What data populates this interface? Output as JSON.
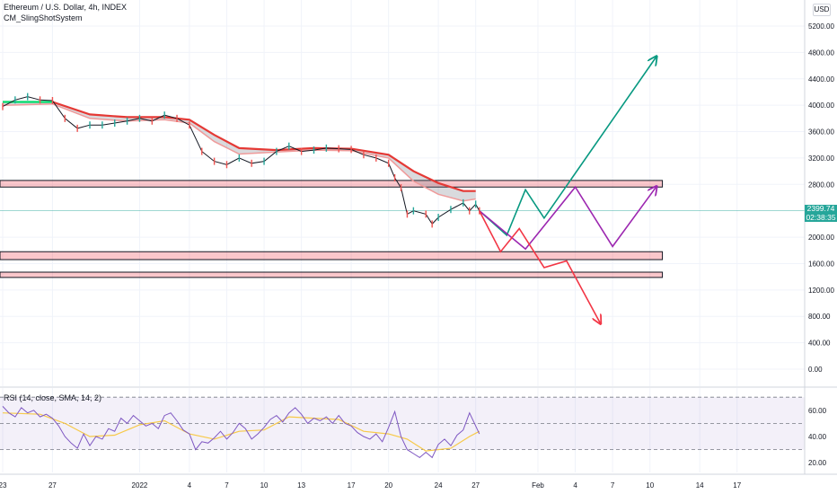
{
  "header": {
    "title": "Ethereum / U.S. Dollar, 4h, INDEX",
    "indicator": "CM_SlingShotSystem",
    "currency": "USD"
  },
  "rsi_header": {
    "label": "RSI (14, close, SMA, 14, 2)"
  },
  "price_tag": {
    "price": "2399.74",
    "countdown": "02:38:35"
  },
  "chart_data": {
    "type": "candlestick",
    "price_axis": {
      "ticks": [
        5200,
        4800,
        4400,
        4000,
        3600,
        3200,
        2800,
        2000,
        1600,
        1200,
        800,
        400,
        0
      ],
      "tick_labels": [
        "5200.00",
        "4800.00",
        "4400.00",
        "4000.00",
        "3600.00",
        "3200.00",
        "2800.00",
        "2000.00",
        "1600.00",
        "1200.00",
        "800.00",
        "400.00",
        "0.00"
      ],
      "current_price": 2399.74
    },
    "rsi_axis": {
      "ticks": [
        60,
        40,
        20
      ],
      "tick_labels": [
        "60.00",
        "40.00",
        "20.00"
      ],
      "bands": [
        30,
        50,
        70
      ]
    },
    "time_axis": {
      "labels": [
        "23",
        "27",
        "2022",
        "4",
        "7",
        "10",
        "13",
        "17",
        "20",
        "24",
        "27",
        "Feb",
        "4",
        "7",
        "10",
        "14",
        "17"
      ],
      "positions": [
        -1,
        3,
        10,
        14,
        17,
        20,
        23,
        27,
        30,
        34,
        37,
        42,
        45,
        48,
        51,
        55,
        58
      ]
    },
    "price_series": [
      [
        -1,
        3980
      ],
      [
        0,
        4080
      ],
      [
        1,
        4130
      ],
      [
        2,
        4080
      ],
      [
        3,
        4070
      ],
      [
        4,
        3800
      ],
      [
        5,
        3650
      ],
      [
        6,
        3700
      ],
      [
        7,
        3700
      ],
      [
        8,
        3730
      ],
      [
        9,
        3760
      ],
      [
        10,
        3800
      ],
      [
        11,
        3760
      ],
      [
        12,
        3850
      ],
      [
        13,
        3800
      ],
      [
        14,
        3700
      ],
      [
        15,
        3300
      ],
      [
        16,
        3150
      ],
      [
        17,
        3100
      ],
      [
        18,
        3200
      ],
      [
        19,
        3120
      ],
      [
        20,
        3150
      ],
      [
        21,
        3300
      ],
      [
        22,
        3380
      ],
      [
        23,
        3300
      ],
      [
        24,
        3320
      ],
      [
        25,
        3350
      ],
      [
        26,
        3340
      ],
      [
        27,
        3330
      ],
      [
        28,
        3250
      ],
      [
        29,
        3200
      ],
      [
        30,
        3120
      ],
      [
        30.5,
        2900
      ],
      [
        31,
        2750
      ],
      [
        31.5,
        2350
      ],
      [
        32,
        2400
      ],
      [
        33,
        2350
      ],
      [
        33.5,
        2200
      ],
      [
        34,
        2300
      ],
      [
        35,
        2420
      ],
      [
        36,
        2520
      ],
      [
        36.5,
        2400
      ],
      [
        37,
        2500
      ],
      [
        37.3,
        2400
      ]
    ],
    "moving_average": [
      [
        -1,
        4050
      ],
      [
        3,
        4050
      ],
      [
        6,
        3860
      ],
      [
        9,
        3820
      ],
      [
        12,
        3820
      ],
      [
        14,
        3780
      ],
      [
        16,
        3550
      ],
      [
        18,
        3350
      ],
      [
        21,
        3320
      ],
      [
        24,
        3350
      ],
      [
        27,
        3340
      ],
      [
        30,
        3250
      ],
      [
        32,
        3000
      ],
      [
        34,
        2820
      ],
      [
        36,
        2700
      ],
      [
        37,
        2700
      ]
    ],
    "ma_lower": [
      [
        -1,
        4000
      ],
      [
        3,
        4020
      ],
      [
        6,
        3800
      ],
      [
        9,
        3760
      ],
      [
        12,
        3780
      ],
      [
        14,
        3730
      ],
      [
        16,
        3450
      ],
      [
        18,
        3260
      ],
      [
        21,
        3290
      ],
      [
        24,
        3320
      ],
      [
        27,
        3310
      ],
      [
        30,
        3200
      ],
      [
        32,
        2850
      ],
      [
        34,
        2650
      ],
      [
        36,
        2550
      ],
      [
        37,
        2580
      ]
    ],
    "zones": [
      {
        "top": 2860,
        "bottom": 2760
      },
      {
        "top": 1780,
        "bottom": 1660
      },
      {
        "top": 1470,
        "bottom": 1390
      }
    ],
    "projections": [
      {
        "color": "#089981",
        "points": [
          [
            37.3,
            2400
          ],
          [
            39.5,
            2030
          ],
          [
            41,
            2720
          ],
          [
            42.5,
            2290
          ],
          [
            51.5,
            4730
          ]
        ]
      },
      {
        "color": "#9c27b0",
        "points": [
          [
            37.3,
            2400
          ],
          [
            41,
            1820
          ],
          [
            45,
            2760
          ],
          [
            48,
            1860
          ],
          [
            51.5,
            2760
          ]
        ]
      },
      {
        "color": "#f23645",
        "points": [
          [
            37.3,
            2400
          ],
          [
            39,
            1780
          ],
          [
            40.5,
            2130
          ],
          [
            42.5,
            1540
          ],
          [
            44.3,
            1640
          ],
          [
            47,
            700
          ]
        ]
      }
    ],
    "rsi_series": [
      [
        -1,
        63
      ],
      [
        -0.5,
        58
      ],
      [
        0,
        55
      ],
      [
        0.5,
        62
      ],
      [
        1,
        58
      ],
      [
        1.5,
        60
      ],
      [
        2,
        55
      ],
      [
        2.5,
        57
      ],
      [
        3,
        54
      ],
      [
        3.5,
        48
      ],
      [
        4,
        40
      ],
      [
        4.5,
        35
      ],
      [
        5,
        31
      ],
      [
        5.5,
        42
      ],
      [
        6,
        33
      ],
      [
        6.5,
        40
      ],
      [
        7,
        38
      ],
      [
        7.5,
        46
      ],
      [
        8,
        44
      ],
      [
        8.5,
        54
      ],
      [
        9,
        50
      ],
      [
        9.5,
        56
      ],
      [
        10,
        52
      ],
      [
        10.5,
        48
      ],
      [
        11,
        50
      ],
      [
        11.5,
        46
      ],
      [
        12,
        56
      ],
      [
        12.5,
        58
      ],
      [
        13,
        52
      ],
      [
        13.5,
        45
      ],
      [
        14,
        42
      ],
      [
        14.5,
        30
      ],
      [
        15,
        36
      ],
      [
        15.5,
        35
      ],
      [
        16,
        39
      ],
      [
        16.5,
        44
      ],
      [
        17,
        38
      ],
      [
        17.5,
        43
      ],
      [
        18,
        50
      ],
      [
        18.5,
        46
      ],
      [
        19,
        38
      ],
      [
        19.5,
        42
      ],
      [
        20,
        47
      ],
      [
        20.5,
        53
      ],
      [
        21,
        56
      ],
      [
        21.5,
        51
      ],
      [
        22,
        58
      ],
      [
        22.5,
        62
      ],
      [
        23,
        57
      ],
      [
        23.5,
        50
      ],
      [
        24,
        54
      ],
      [
        24.5,
        52
      ],
      [
        25,
        55
      ],
      [
        25.5,
        50
      ],
      [
        26,
        56
      ],
      [
        26.5,
        50
      ],
      [
        27,
        48
      ],
      [
        27.5,
        43
      ],
      [
        28,
        40
      ],
      [
        28.5,
        38
      ],
      [
        29,
        42
      ],
      [
        29.5,
        36
      ],
      [
        30,
        47
      ],
      [
        30.5,
        59
      ],
      [
        31,
        40
      ],
      [
        31.5,
        30
      ],
      [
        32,
        27
      ],
      [
        32.5,
        24
      ],
      [
        33,
        28
      ],
      [
        33.5,
        24
      ],
      [
        34,
        34
      ],
      [
        34.5,
        38
      ],
      [
        35,
        33
      ],
      [
        35.5,
        41
      ],
      [
        36,
        45
      ],
      [
        36.5,
        58
      ],
      [
        37,
        48
      ],
      [
        37.3,
        42
      ]
    ],
    "rsi_ma": [
      [
        -1,
        58
      ],
      [
        2,
        57
      ],
      [
        4,
        50
      ],
      [
        6,
        40
      ],
      [
        8,
        41
      ],
      [
        10,
        49
      ],
      [
        12,
        52
      ],
      [
        14,
        42
      ],
      [
        16,
        38
      ],
      [
        18,
        44
      ],
      [
        20,
        45
      ],
      [
        22,
        55
      ],
      [
        24,
        54
      ],
      [
        26,
        53
      ],
      [
        28,
        44
      ],
      [
        30,
        42
      ],
      [
        31.5,
        38
      ],
      [
        33,
        29
      ],
      [
        35,
        31
      ],
      [
        36.5,
        40
      ],
      [
        37.3,
        44
      ]
    ]
  }
}
